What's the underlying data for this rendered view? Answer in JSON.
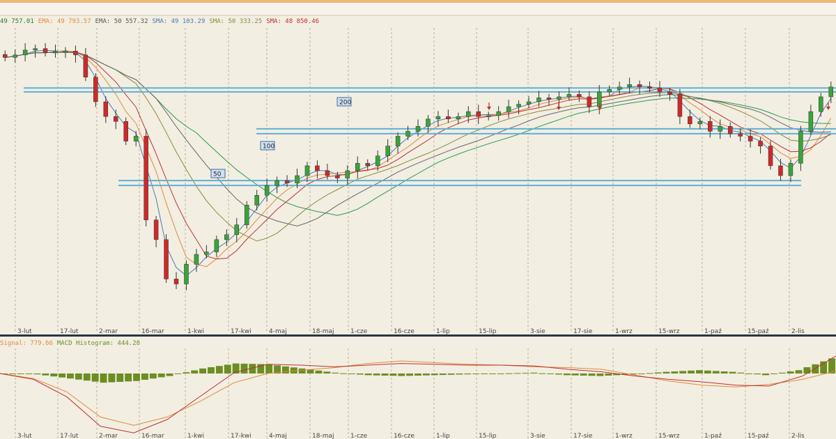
{
  "legend": {
    "items": [
      {
        "text": "49 757.01",
        "color": "#2a7a2a"
      },
      {
        "text": "EMA: 49 793.57",
        "color": "#e08a3a"
      },
      {
        "text": "EMA: 50 557.32",
        "color": "#555555"
      },
      {
        "text": "SMA: 49 103.29",
        "color": "#4a7ab0"
      },
      {
        "text": "SMA: 50 333.25",
        "color": "#8a8a3a"
      },
      {
        "text": "SMA: 48 850.46",
        "color": "#c03030"
      }
    ]
  },
  "macd_legend": {
    "items": [
      {
        "text": "Signal: 779.66",
        "color": "#e08a3a"
      },
      {
        "text": "MACD Histogram: 444.28",
        "color": "#6b8e23"
      }
    ]
  },
  "chart_data": [
    {
      "type": "line",
      "panel": "price",
      "ylim": [
        45500,
        51500
      ],
      "x_ticks": [
        "3-lut",
        "17-lut",
        "2-mar",
        "16-mar",
        "1-kwi",
        "17-kwi",
        "4-maj",
        "18-maj",
        "1-cze",
        "16-cze",
        "1-lip",
        "15-lip",
        "3-sie",
        "17-sie",
        "1-wrz",
        "15-wrz",
        "1-paź",
        "15-paź",
        "2-lis"
      ],
      "candles_close_sampled": [
        50900,
        50950,
        51050,
        51080,
        51000,
        51020,
        51030,
        50950,
        50500,
        50000,
        49700,
        49600,
        49200,
        49300,
        47600,
        47200,
        46400,
        46300,
        46700,
        46900,
        46950,
        47200,
        47300,
        47500,
        47900,
        48100,
        48300,
        48400,
        48350,
        48500,
        48700,
        48600,
        48500,
        48450,
        48600,
        48750,
        48700,
        48900,
        49100,
        49300,
        49400,
        49500,
        49650,
        49700,
        49650,
        49700,
        49800,
        49700,
        49720,
        49800,
        49900,
        49950,
        50000,
        50080,
        50050,
        50100,
        50150,
        50100,
        49900,
        50200,
        50250,
        50300,
        50350,
        50300,
        50280,
        50200,
        50150,
        49700,
        49550,
        49600,
        49400,
        49500,
        49350,
        49300,
        49200,
        49100,
        48700,
        48500,
        48750,
        49400,
        49800,
        50100,
        50300
      ],
      "horizontal_levels": [
        50280,
        50200,
        49450,
        49350,
        48400,
        48300
      ],
      "tags": [
        {
          "label": "200"
        },
        {
          "label": "100"
        },
        {
          "label": "50"
        }
      ],
      "signal_arrows": 4
    },
    {
      "type": "bar",
      "panel": "macd",
      "series": [
        {
          "name": "Signal",
          "values_sampled": [
            0,
            -60,
            -220,
            -520,
            -620,
            -520,
            -330,
            -110,
            0,
            40,
            70,
            120,
            150,
            130,
            110,
            100,
            80,
            70,
            50,
            -20,
            -90,
            -140,
            -160,
            -130,
            -70,
            30
          ]
        },
        {
          "name": "MACD Histogram",
          "values_sampled": [
            0,
            -10,
            -60,
            -110,
            -90,
            -30,
            60,
            120,
            110,
            60,
            10,
            -20,
            -30,
            -20,
            -10,
            0,
            10,
            -20,
            -30,
            -10,
            20,
            40,
            20,
            -20,
            40,
            180
          ]
        }
      ]
    }
  ]
}
